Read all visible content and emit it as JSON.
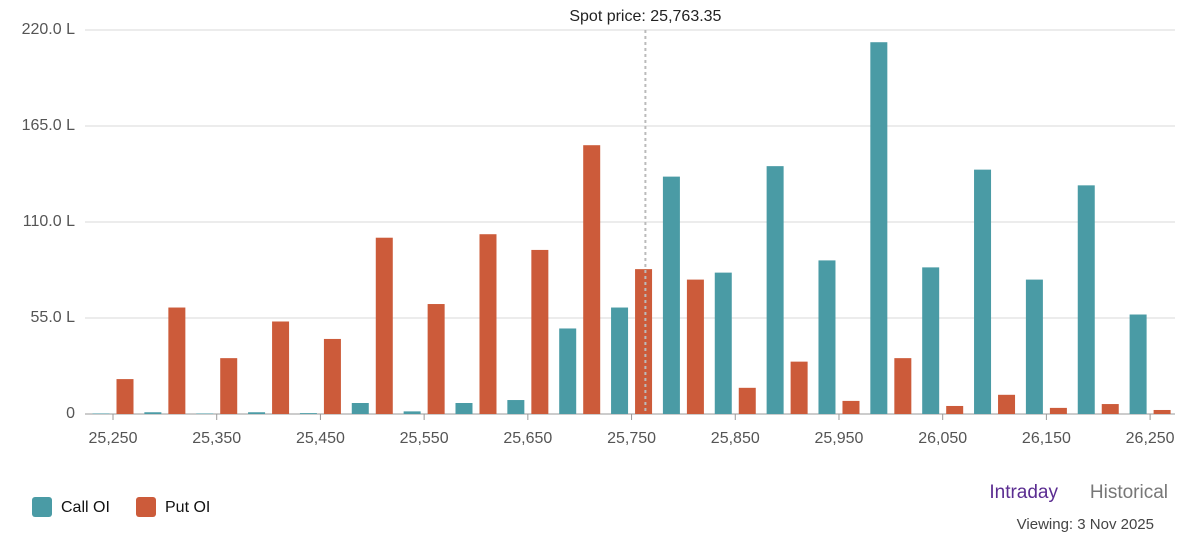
{
  "chart_data": {
    "type": "grouped-bar",
    "x": [
      25250,
      25300,
      25350,
      25400,
      25450,
      25500,
      25550,
      25600,
      25650,
      25700,
      25750,
      25800,
      25850,
      25900,
      25950,
      26000,
      26050,
      26100,
      26150,
      26200,
      26250
    ],
    "series": [
      {
        "name": "Call OI",
        "color": "#4a9ba5",
        "values": [
          0.3,
          1,
          0.3,
          1,
          0.5,
          6.3,
          1.5,
          6.3,
          8,
          49,
          61,
          136,
          81,
          142,
          88,
          213,
          84,
          140,
          77,
          131,
          57
        ]
      },
      {
        "name": "Put OI",
        "color": "#cc5b3a",
        "values": [
          20,
          61,
          32,
          53,
          43,
          101,
          63,
          103,
          94,
          154,
          83,
          77,
          15,
          30,
          7.5,
          32,
          4.6,
          11,
          3.5,
          5.7,
          2.3
        ]
      }
    ],
    "xlim": [
      25223,
      26274
    ],
    "xticks": [
      {
        "value": 25250,
        "label": "25,250"
      },
      {
        "value": 25350,
        "label": "25,350"
      },
      {
        "value": 25450,
        "label": "25,450"
      },
      {
        "value": 25550,
        "label": "25,550"
      },
      {
        "value": 25650,
        "label": "25,650"
      },
      {
        "value": 25750,
        "label": "25,750"
      },
      {
        "value": 25850,
        "label": "25,850"
      },
      {
        "value": 25950,
        "label": "25,950"
      },
      {
        "value": 26050,
        "label": "26,050"
      },
      {
        "value": 26150,
        "label": "26,150"
      },
      {
        "value": 26250,
        "label": "26,250"
      }
    ],
    "ylim": [
      0,
      220
    ],
    "yticks": [
      0,
      {
        "value": 55,
        "label": "55.0 L"
      },
      {
        "value": 110,
        "label": "110.0 L"
      },
      {
        "value": 165,
        "label": "165.0 L"
      },
      {
        "value": 220,
        "label": "220.0 L"
      }
    ],
    "grid": true,
    "annotation": {
      "text": "Spot price: 25,763.35",
      "x": 25763.35
    },
    "legend": "bottom-left"
  },
  "view_tabs": [
    "Intraday",
    "Historical"
  ],
  "active_tab": 0,
  "viewing": "Viewing: 3 Nov 2025"
}
